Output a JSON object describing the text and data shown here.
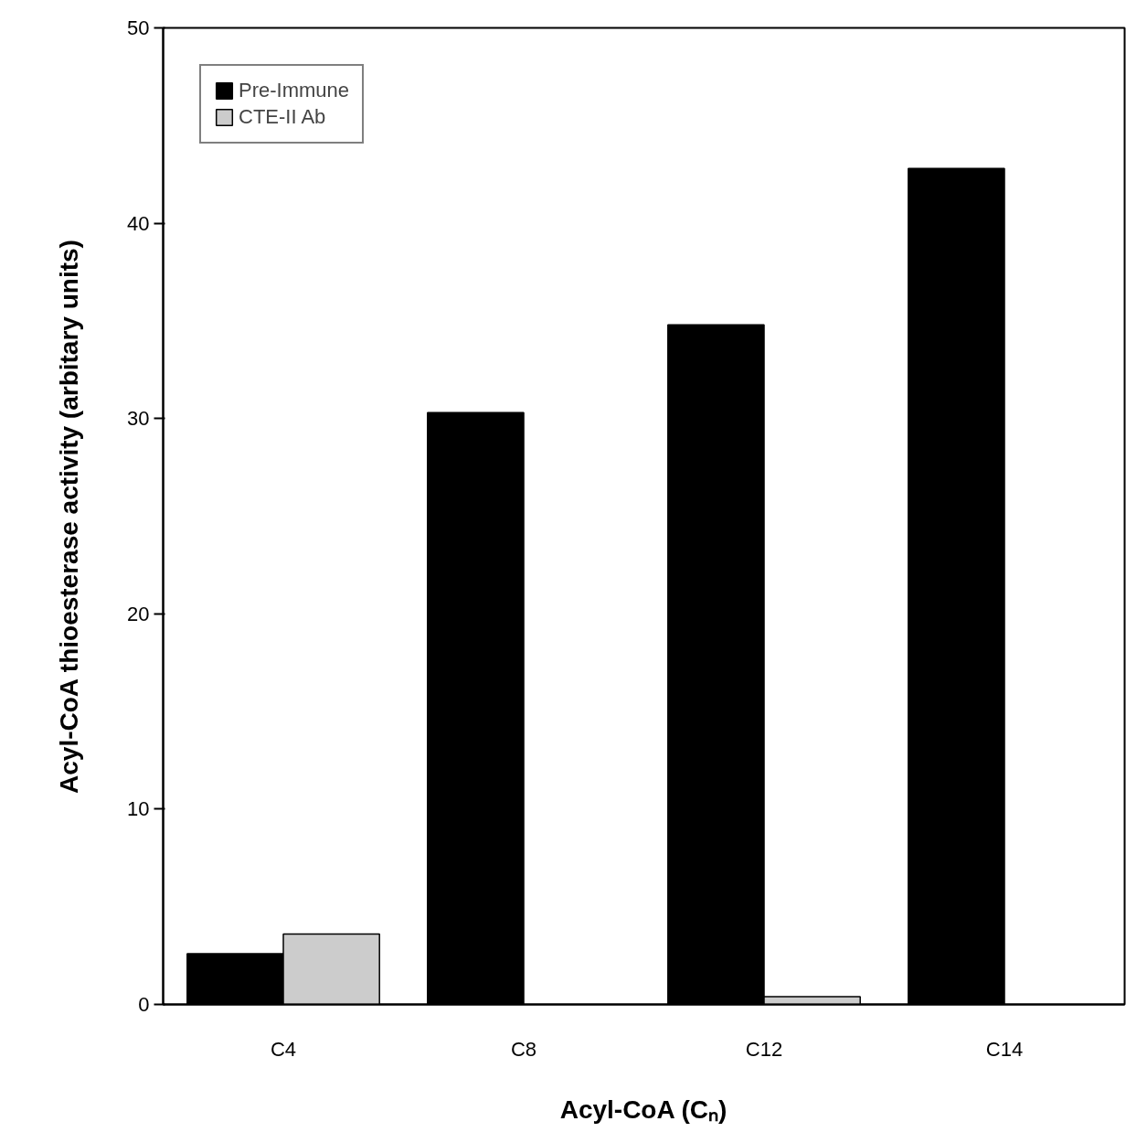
{
  "chart_data": {
    "type": "bar",
    "xlabel": "Acyl-CoA (Cₙ)",
    "ylabel": "Acyl-CoA thioesterase activity (arbitary units)",
    "categories": [
      "C4",
      "C8",
      "C12",
      "C14"
    ],
    "series": [
      {
        "name": "Pre-Immune",
        "color": "#000000",
        "values": [
          2.6,
          30.3,
          34.8,
          42.8
        ]
      },
      {
        "name": "CTE-II Ab",
        "color": "#cccccc",
        "values": [
          3.6,
          null,
          0.4,
          null
        ]
      }
    ],
    "ylim": [
      0,
      50
    ],
    "yticks": [
      0,
      10,
      20,
      30,
      40,
      50
    ],
    "grid": false,
    "legend": "top left"
  }
}
